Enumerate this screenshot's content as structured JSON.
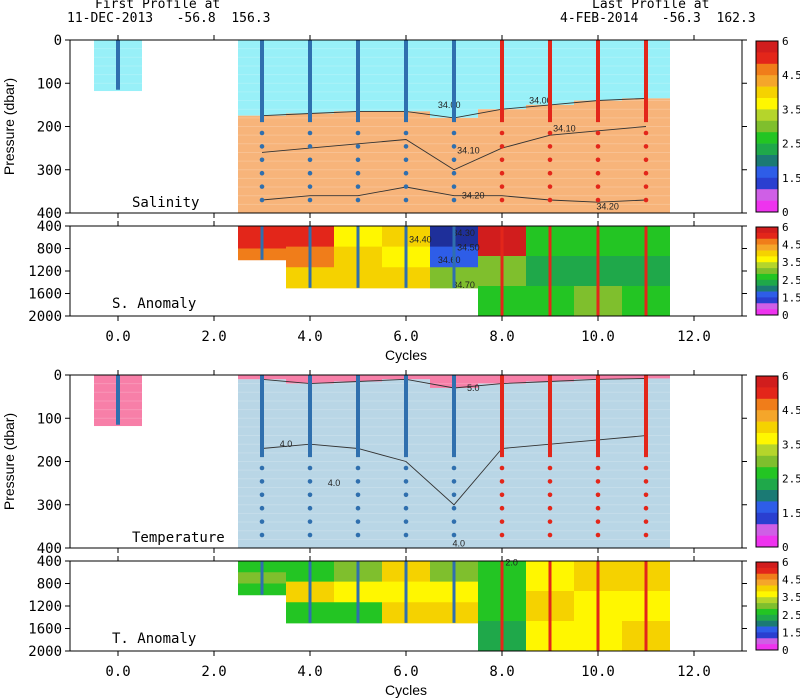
{
  "header": {
    "first_label": "First Profile at",
    "first_info": "11-DEC-2013   -56.8  156.3",
    "last_label": "Last Profile at",
    "last_info": "4-FEB-2014   -56.3  162.3"
  },
  "chart_data": {
    "type": "heatmap",
    "x_axis": {
      "label": "Cycles",
      "range": [
        -1,
        13
      ],
      "ticks": [
        0,
        2,
        4,
        6,
        8,
        10,
        12
      ],
      "tick_labels": [
        "0.0",
        "2.0",
        "4.0",
        "6.0",
        "8.0",
        "10.0",
        "12.0"
      ]
    },
    "cycles": [
      0,
      3,
      4,
      5,
      6,
      7,
      8,
      9,
      10,
      11
    ],
    "profile_colors": [
      "#2f6fae",
      "#2f6fae",
      "#2f6fae",
      "#2f6fae",
      "#2f6fae",
      "#2f6fae",
      "#e3261a",
      "#e3261a",
      "#e3261a",
      "#e3261a"
    ],
    "panels": [
      {
        "name": "Salinity",
        "ylabel": "Pressure (dbar)",
        "yrange": [
          0,
          400
        ],
        "yticks": [
          0,
          100,
          200,
          300,
          400
        ],
        "upper_color": "#98f0f8",
        "lower_color": "#f7b47a",
        "contours": [
          {
            "label": "34.00",
            "depths": [
              null,
              175,
              170,
              165,
              165,
              180,
              160,
              150,
              140,
              135
            ]
          },
          {
            "label": "34.10",
            "depths": [
              null,
              260,
              250,
              240,
              230,
              300,
              250,
              220,
              210,
              200
            ]
          },
          {
            "label": "34.20",
            "depths": [
              null,
              370,
              360,
              360,
              340,
              360,
              360,
              370,
              375,
              370
            ]
          }
        ],
        "contour_labels": [
          {
            "text": "34.00",
            "x": 6.9,
            "y": 150
          },
          {
            "text": "34.00",
            "x": 8.8,
            "y": 140
          },
          {
            "text": "34.10",
            "x": 7.3,
            "y": 255
          },
          {
            "text": "34.10",
            "x": 9.3,
            "y": 205
          },
          {
            "text": "34.20",
            "x": 7.4,
            "y": 360
          },
          {
            "text": "34.20",
            "x": 10.2,
            "y": 385
          }
        ]
      },
      {
        "name": "S. Anomaly",
        "ylabel": "",
        "yrange": [
          400,
          2000
        ],
        "yticks": [
          400,
          800,
          1200,
          1600,
          2000
        ],
        "bottoms": [
          null,
          1000,
          1500,
          1500,
          1500,
          1500,
          2000,
          2000,
          2000,
          2000
        ],
        "column_colors": [
          null,
          [
            "#e3261a",
            "#e3261a",
            "#f07d1a"
          ],
          [
            "#e3261a",
            "#f07d1a",
            "#f5d200"
          ],
          [
            "#fff700",
            "#f5d200",
            "#f5d200"
          ],
          [
            "#f5d200",
            "#fff700",
            "#f5d200"
          ],
          [
            "#1e2f9a",
            "#2e5de8",
            "#7fbf2d"
          ],
          [
            "#d11d1d",
            "#7fbf2d",
            "#23c523"
          ],
          [
            "#23c523",
            "#1fa84a",
            "#23c523"
          ],
          [
            "#23c523",
            "#1fa84a",
            "#7fbf2d"
          ],
          [
            "#23c523",
            "#1fa84a",
            "#23c523"
          ]
        ],
        "contour_labels": [
          {
            "text": "34.30",
            "x": 7.2,
            "y": 520
          },
          {
            "text": "34.40",
            "x": 6.3,
            "y": 640
          },
          {
            "text": "34.50",
            "x": 7.3,
            "y": 780
          },
          {
            "text": "34.60",
            "x": 6.9,
            "y": 1000
          },
          {
            "text": "34.70",
            "x": 7.2,
            "y": 1450
          }
        ]
      },
      {
        "name": "Temperature",
        "ylabel": "Pressure (dbar)",
        "yrange": [
          0,
          400
        ],
        "yticks": [
          0,
          100,
          200,
          300,
          400
        ],
        "upper_color": "#f77fa8",
        "lower_color": "#b9d6e6",
        "contours": [
          {
            "label": "5.0",
            "depths": [
              null,
              10,
              20,
              15,
              10,
              30,
              20,
              15,
              10,
              8
            ]
          },
          {
            "label": "4.0",
            "depths": [
              null,
              170,
              160,
              170,
              200,
              300,
              170,
              160,
              150,
              140
            ]
          }
        ],
        "contour_labels": [
          {
            "text": "5.0",
            "x": 7.4,
            "y": 30
          },
          {
            "text": "4.0",
            "x": 3.5,
            "y": 160
          },
          {
            "text": "4.0",
            "x": 4.5,
            "y": 250
          },
          {
            "text": "4.0",
            "x": 7.1,
            "y": 390
          }
        ]
      },
      {
        "name": "T. Anomaly",
        "ylabel": "",
        "yrange": [
          400,
          2000
        ],
        "yticks": [
          400,
          800,
          1200,
          1600,
          2000
        ],
        "bottoms": [
          null,
          1000,
          1500,
          1500,
          1500,
          1500,
          2000,
          2000,
          2000,
          2000
        ],
        "column_colors": [
          null,
          [
            "#23c523",
            "#7fbf2d",
            "#23c523"
          ],
          [
            "#23c523",
            "#f5d200",
            "#23c523"
          ],
          [
            "#7fbf2d",
            "#fff700",
            "#23c523"
          ],
          [
            "#f5d200",
            "#fff700",
            "#f5d200"
          ],
          [
            "#7fbf2d",
            "#fff700",
            "#f5d200"
          ],
          [
            "#23c523",
            "#23c523",
            "#1fa84a"
          ],
          [
            "#fff700",
            "#f5d200",
            "#fff700"
          ],
          [
            "#f5d200",
            "#fff700",
            "#fff700"
          ],
          [
            "#f5d200",
            "#fff700",
            "#f5d200"
          ]
        ],
        "contour_labels": [
          {
            "text": "2.0",
            "x": 8.2,
            "y": 430
          }
        ]
      }
    ],
    "colorbar": {
      "colors": [
        "#d11d1d",
        "#e3261a",
        "#f07d1a",
        "#f5a62a",
        "#f5d200",
        "#fff700",
        "#b5d52b",
        "#7fbf2d",
        "#23c523",
        "#1fa84a",
        "#1b7a74",
        "#2e5de8",
        "#2a3fd0",
        "#cf5fe6",
        "#ee33ee"
      ],
      "tick_values": [
        6,
        4.5,
        3.5,
        2.5,
        1.5,
        0
      ],
      "tick_labels": [
        "6",
        "4.5",
        "3.5",
        "2.5",
        "1.5",
        "0"
      ]
    }
  }
}
